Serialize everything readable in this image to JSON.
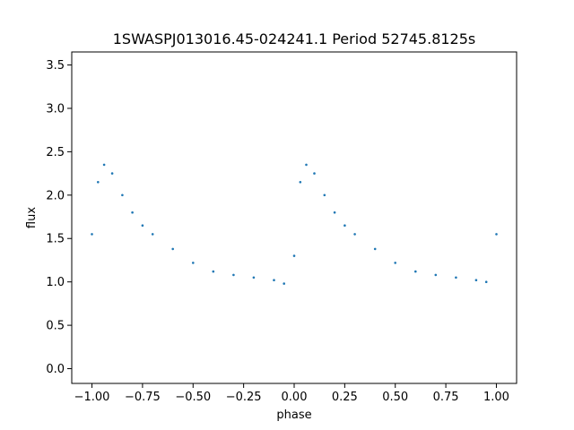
{
  "chart_data": {
    "type": "scatter",
    "title": "1SWASPJ013016.45-024241.1 Period 52745.8125s",
    "xlabel": "phase",
    "ylabel": "flux",
    "xlim": [
      -1.1,
      1.1
    ],
    "ylim": [
      -0.17,
      3.65
    ],
    "x_ticks": [
      -1.0,
      -0.75,
      -0.5,
      -0.25,
      0.0,
      0.25,
      0.5,
      0.75,
      1.0
    ],
    "x_tick_labels": [
      "−1.00",
      "−0.75",
      "−0.50",
      "−0.25",
      "0.00",
      "0.25",
      "0.50",
      "0.75",
      "1.00"
    ],
    "y_ticks": [
      0.0,
      0.5,
      1.0,
      1.5,
      2.0,
      2.5,
      3.0,
      3.5
    ],
    "y_tick_labels": [
      "0.0",
      "0.5",
      "1.0",
      "1.5",
      "2.0",
      "2.5",
      "3.0",
      "3.5"
    ],
    "grid": false,
    "marker_color": "#1f77b4",
    "series": [
      {
        "x": [
          -1.0,
          -0.97,
          -0.94,
          -0.9,
          -0.85,
          -0.8,
          -0.75,
          -0.7,
          -0.6,
          -0.5,
          -0.4,
          -0.3,
          -0.2,
          -0.1,
          -0.05,
          0.0,
          0.03,
          0.06,
          0.1,
          0.15,
          0.2,
          0.25,
          0.3,
          0.4,
          0.5,
          0.6,
          0.7,
          0.8,
          0.9,
          0.95,
          1.0
        ],
        "y": [
          1.55,
          2.15,
          2.35,
          2.25,
          2.0,
          1.8,
          1.65,
          1.55,
          1.38,
          1.22,
          1.12,
          1.08,
          1.05,
          1.02,
          0.98,
          1.3,
          2.15,
          2.35,
          2.25,
          2.0,
          1.8,
          1.65,
          1.55,
          1.38,
          1.22,
          1.12,
          1.08,
          1.05,
          1.02,
          1.0,
          1.55
        ]
      }
    ]
  }
}
